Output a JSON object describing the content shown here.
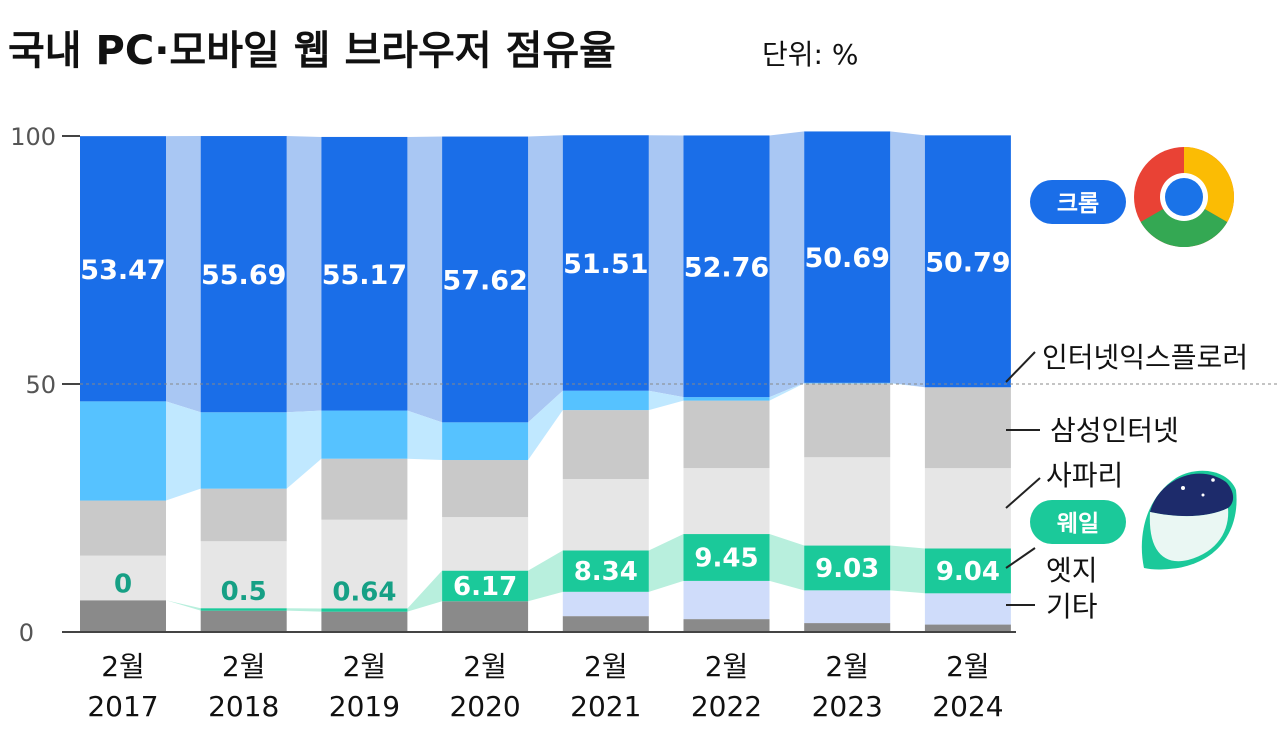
{
  "title": "국내 PC·모바일 웹 브라우저 점유율",
  "unit": "단위: %",
  "colors": {
    "chrome": "#1a6ee8",
    "chrome_band": "#a9c7f3",
    "ie": "#56c2ff",
    "ie_band": "#c0e8ff",
    "samsung": "#c9c9c9",
    "safari": "#e6e6e6",
    "whale": "#1bc99a",
    "whale_band": "#b8efdd",
    "edge": "#cfdcfa",
    "other": "#8a8a8a",
    "axis": "#444444"
  },
  "legend": {
    "chrome": "크롬",
    "ie": "인터넷익스플로러",
    "samsung": "삼성인터넷",
    "safari": "사파리",
    "whale": "웨일",
    "edge": "엣지",
    "other": "기타"
  },
  "icons": {
    "chrome": "chrome-logo-icon",
    "whale": "whale-logo-icon"
  },
  "chart_data": {
    "type": "bar",
    "stacked": true,
    "categories": [
      "2월\n2017",
      "2월\n2018",
      "2월\n2019",
      "2월\n2020",
      "2월\n2021",
      "2월\n2022",
      "2월\n2023",
      "2월\n2024"
    ],
    "ylim": [
      0,
      100
    ],
    "yticks": [
      0,
      50,
      100
    ],
    "series": [
      {
        "name": "기타",
        "key": "other",
        "values": [
          6.4,
          4.3,
          4.1,
          6.2,
          3.2,
          2.6,
          1.8,
          1.5
        ]
      },
      {
        "name": "엣지",
        "key": "edge",
        "values": [
          0,
          0,
          0,
          0,
          4.9,
          7.7,
          6.6,
          6.3
        ]
      },
      {
        "name": "웨일",
        "key": "whale",
        "values": [
          0,
          0.5,
          0.64,
          6.17,
          8.34,
          9.45,
          9.03,
          9.04
        ]
      },
      {
        "name": "사파리",
        "key": "safari",
        "values": [
          9.0,
          13.5,
          17.9,
          10.8,
          14.4,
          13.3,
          17.8,
          16.2
        ]
      },
      {
        "name": "삼성인터넷",
        "key": "samsung",
        "values": [
          11.1,
          10.6,
          12.3,
          11.5,
          13.9,
          13.6,
          14.9,
          16.3
        ]
      },
      {
        "name": "인터넷익스플로러",
        "key": "ie",
        "values": [
          20.0,
          15.4,
          9.7,
          7.6,
          3.9,
          0.7,
          0.1,
          0.0
        ]
      },
      {
        "name": "크롬",
        "key": "chrome",
        "values": [
          53.47,
          55.69,
          55.17,
          57.62,
          51.51,
          52.76,
          50.69,
          50.79
        ]
      }
    ],
    "data_labels": {
      "chrome": [
        "53.47",
        "55.69",
        "55.17",
        "57.62",
        "51.51",
        "52.76",
        "50.69",
        "50.79"
      ],
      "whale": [
        "0",
        "0.5",
        "0.64",
        "6.17",
        "8.34",
        "9.45",
        "9.03",
        "9.04"
      ]
    },
    "xlabel": "",
    "ylabel": "",
    "grid": false
  }
}
